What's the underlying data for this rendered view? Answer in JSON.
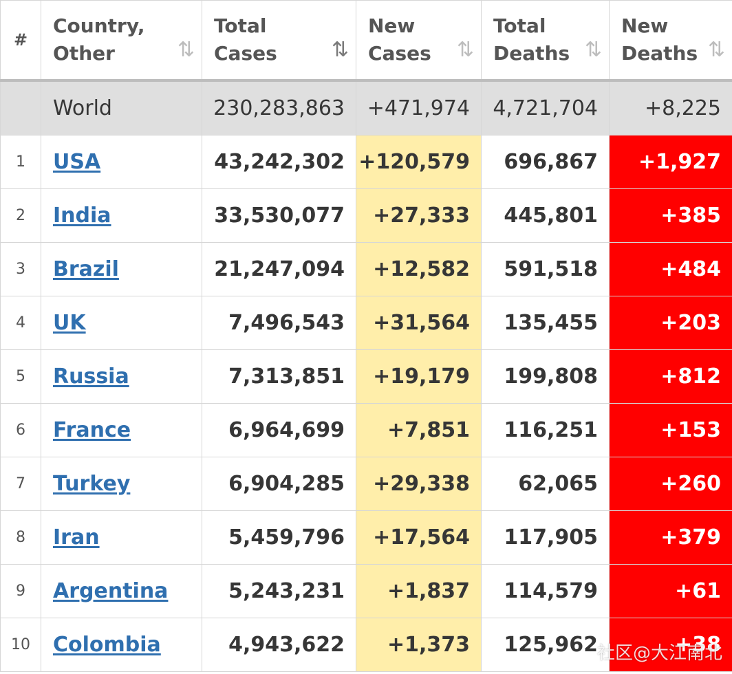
{
  "table": {
    "headers": {
      "rank": "#",
      "country_line1": "Country,",
      "country_line2": "Other",
      "total_cases_line1": "Total",
      "total_cases_line2": "Cases",
      "new_cases_line1": "New",
      "new_cases_line2": "Cases",
      "total_deaths_line1": "Total",
      "total_deaths_line2": "Deaths",
      "new_deaths_line1": "New",
      "new_deaths_line2": "Deaths"
    },
    "sort_icons": {
      "country": "⇅",
      "total_cases": "⇅",
      "new_cases": "⇅",
      "total_deaths": "⇅",
      "new_deaths": "⇅"
    },
    "world": {
      "country": "World",
      "total_cases": "230,283,863",
      "new_cases": "+471,974",
      "total_deaths": "4,721,704",
      "new_deaths": "+8,225"
    },
    "rows": [
      {
        "rank": "1",
        "country": "USA",
        "total_cases": "43,242,302",
        "new_cases": "+120,579",
        "total_deaths": "696,867",
        "new_deaths": "+1,927"
      },
      {
        "rank": "2",
        "country": "India",
        "total_cases": "33,530,077",
        "new_cases": "+27,333",
        "total_deaths": "445,801",
        "new_deaths": "+385"
      },
      {
        "rank": "3",
        "country": "Brazil",
        "total_cases": "21,247,094",
        "new_cases": "+12,582",
        "total_deaths": "591,518",
        "new_deaths": "+484"
      },
      {
        "rank": "4",
        "country": "UK",
        "total_cases": "7,496,543",
        "new_cases": "+31,564",
        "total_deaths": "135,455",
        "new_deaths": "+203"
      },
      {
        "rank": "5",
        "country": "Russia",
        "total_cases": "7,313,851",
        "new_cases": "+19,179",
        "total_deaths": "199,808",
        "new_deaths": "+812"
      },
      {
        "rank": "6",
        "country": "France",
        "total_cases": "6,964,699",
        "new_cases": "+7,851",
        "total_deaths": "116,251",
        "new_deaths": "+153"
      },
      {
        "rank": "7",
        "country": "Turkey",
        "total_cases": "6,904,285",
        "new_cases": "+29,338",
        "total_deaths": "62,065",
        "new_deaths": "+260"
      },
      {
        "rank": "8",
        "country": "Iran",
        "total_cases": "5,459,796",
        "new_cases": "+17,564",
        "total_deaths": "117,905",
        "new_deaths": "+379"
      },
      {
        "rank": "9",
        "country": "Argentina",
        "total_cases": "5,243,231",
        "new_cases": "+1,837",
        "total_deaths": "114,579",
        "new_deaths": "+61"
      },
      {
        "rank": "10",
        "country": "Colombia",
        "total_cases": "4,943,622",
        "new_cases": "+1,373",
        "total_deaths": "125,962",
        "new_deaths": "+38"
      }
    ]
  },
  "colors": {
    "link": "#2f6faf",
    "new_cases_bg": "#ffeeaa",
    "new_deaths_bg": "#ff0000",
    "world_row_bg": "#dfdfdf"
  },
  "watermark": "社区@大江南北"
}
